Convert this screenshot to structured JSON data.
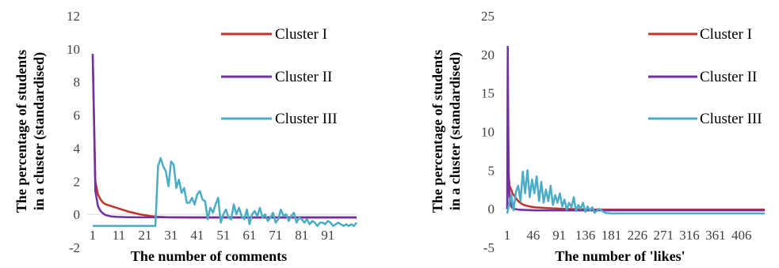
{
  "chart_data": [
    {
      "type": "line",
      "xlabel": "The number of comments",
      "ylabel_lines": [
        "The percentage of students",
        "in a cluster (standardised)"
      ],
      "ylim": [
        -2,
        12
      ],
      "yticks": [
        -2,
        0,
        2,
        4,
        6,
        8,
        10,
        12
      ],
      "xlim": [
        1,
        102
      ],
      "xticks": [
        1,
        11,
        21,
        31,
        41,
        51,
        61,
        71,
        81,
        91
      ],
      "grid": false,
      "legend": "right",
      "series": [
        {
          "name": "Cluster I",
          "color": "#C0332B",
          "x": [
            1,
            2,
            3,
            4,
            5,
            6,
            7,
            9,
            11,
            13,
            15,
            17,
            19,
            21,
            23,
            26,
            30,
            40,
            60,
            80,
            102
          ],
          "y": [
            9.6,
            2.0,
            1.2,
            0.9,
            0.7,
            0.6,
            0.55,
            0.45,
            0.35,
            0.25,
            0.15,
            0.08,
            0.0,
            -0.05,
            -0.1,
            -0.15,
            -0.18,
            -0.2,
            -0.2,
            -0.2,
            -0.2
          ]
        },
        {
          "name": "Cluster II",
          "color": "#7030A0",
          "x": [
            1,
            2,
            3,
            4,
            5,
            6,
            8,
            10,
            14,
            20,
            30,
            60,
            102
          ],
          "y": [
            9.7,
            1.4,
            0.5,
            0.2,
            0.05,
            -0.05,
            -0.12,
            -0.15,
            -0.17,
            -0.18,
            -0.18,
            -0.18,
            -0.18
          ]
        },
        {
          "name": "Cluster III",
          "color": "#4BACC6",
          "x": [
            1,
            10,
            20,
            25,
            26,
            27,
            28,
            29,
            30,
            31,
            32,
            33,
            34,
            35,
            36,
            37,
            38,
            39,
            40,
            41,
            42,
            43,
            44,
            45,
            46,
            47,
            48,
            49,
            50,
            51,
            52,
            53,
            54,
            55,
            56,
            57,
            58,
            59,
            60,
            61,
            62,
            63,
            64,
            65,
            66,
            67,
            68,
            69,
            70,
            71,
            72,
            73,
            74,
            75,
            76,
            77,
            78,
            79,
            80,
            81,
            82,
            83,
            84,
            85,
            86,
            87,
            88,
            89,
            90,
            91,
            92,
            93,
            94,
            95,
            96,
            97,
            98,
            99,
            100,
            101,
            102
          ],
          "y": [
            -0.7,
            -0.7,
            -0.7,
            -0.7,
            2.9,
            3.4,
            2.9,
            2.6,
            1.7,
            3.2,
            3.0,
            1.6,
            2.1,
            1.3,
            1.6,
            0.7,
            0.7,
            1.0,
            0.6,
            1.2,
            1.4,
            0.9,
            0.8,
            -0.3,
            0.4,
            0.1,
            0.6,
            1.0,
            -0.5,
            0.0,
            0.3,
            -0.2,
            -0.3,
            0.6,
            0.0,
            0.4,
            -0.1,
            -0.3,
            0.3,
            -0.6,
            0.0,
            0.2,
            -0.1,
            0.4,
            -0.2,
            0.0,
            -0.4,
            -0.2,
            0.1,
            -0.5,
            -0.3,
            0.3,
            -0.1,
            0.0,
            -0.4,
            -0.1,
            0.1,
            -0.5,
            -0.2,
            -0.3,
            -0.5,
            -0.3,
            -0.6,
            -0.4,
            -0.5,
            -0.7,
            -0.5,
            -0.5,
            -0.6,
            -0.4,
            -0.5,
            -0.7,
            -0.6,
            -0.5,
            -0.6,
            -0.7,
            -0.6,
            -0.7,
            -0.6,
            -0.7,
            -0.5
          ]
        }
      ]
    },
    {
      "type": "line",
      "xlabel": "The number of 'likes'",
      "ylabel_lines": [
        "The percentage of students",
        "in a cluster (standardised)"
      ],
      "ylim": [
        -5,
        25
      ],
      "yticks": [
        -5,
        0,
        5,
        10,
        15,
        20,
        25
      ],
      "xlim": [
        1,
        446
      ],
      "xticks": [
        1,
        46,
        91,
        136,
        181,
        226,
        271,
        316,
        361,
        406
      ],
      "grid": false,
      "legend": "right",
      "series": [
        {
          "name": "Cluster I",
          "color": "#C0332B",
          "x": [
            1,
            3,
            5,
            8,
            10,
            15,
            20,
            25,
            30,
            40,
            50,
            70,
            100,
            150,
            250,
            446
          ],
          "y": [
            0.0,
            5.0,
            3.0,
            2.5,
            2.0,
            1.5,
            1.0,
            0.7,
            0.5,
            0.3,
            0.2,
            0.1,
            0.0,
            -0.1,
            -0.1,
            -0.1
          ]
        },
        {
          "name": "Cluster II",
          "color": "#7030A0",
          "x": [
            1,
            2,
            3,
            4,
            6,
            8,
            12,
            20,
            30,
            50,
            100,
            446
          ],
          "y": [
            0.0,
            21.0,
            9.0,
            3.0,
            1.0,
            0.3,
            0.0,
            -0.1,
            -0.15,
            -0.2,
            -0.2,
            -0.2
          ]
        },
        {
          "name": "Cluster III",
          "color": "#4BACC6",
          "x": [
            1,
            4,
            8,
            12,
            16,
            20,
            24,
            28,
            32,
            36,
            40,
            44,
            48,
            52,
            56,
            60,
            64,
            68,
            72,
            76,
            80,
            84,
            88,
            92,
            96,
            100,
            104,
            108,
            112,
            116,
            120,
            124,
            128,
            132,
            136,
            140,
            144,
            148,
            152,
            160,
            170,
            180,
            200,
            230,
            260,
            300,
            350,
            400,
            446
          ],
          "y": [
            -0.6,
            0.5,
            1.8,
            -0.2,
            2.2,
            3.0,
            1.0,
            4.8,
            2.0,
            5.0,
            1.5,
            3.8,
            2.0,
            4.2,
            1.0,
            3.5,
            0.8,
            2.5,
            1.0,
            3.0,
            0.5,
            1.8,
            0.8,
            2.0,
            0.3,
            1.2,
            -0.1,
            0.8,
            0.2,
            1.5,
            -0.3,
            0.5,
            0.0,
            0.8,
            -0.4,
            0.3,
            -0.2,
            0.2,
            -0.5,
            0.0,
            -0.5,
            -0.6,
            -0.6,
            -0.6,
            -0.6,
            -0.6,
            -0.6,
            -0.6,
            -0.6
          ]
        }
      ]
    }
  ]
}
